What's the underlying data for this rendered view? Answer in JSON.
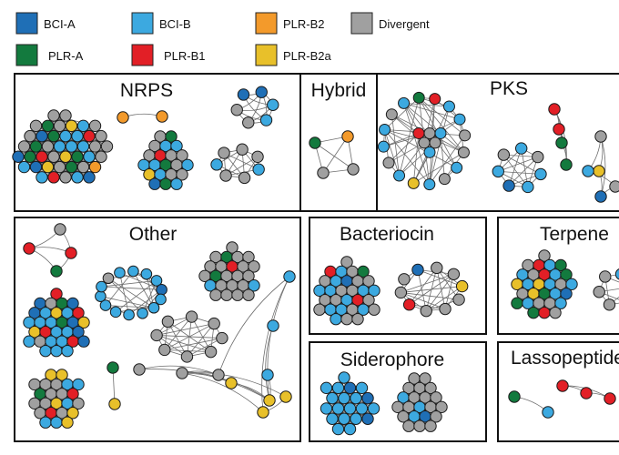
{
  "legend": [
    {
      "key": "bci_a",
      "label": "BCI-A",
      "color": "#1f6fb6"
    },
    {
      "key": "bci_b",
      "label": "BCI-B",
      "color": "#3ca9e0"
    },
    {
      "key": "plr_b2",
      "label": "PLR-B2",
      "color": "#f39a2b"
    },
    {
      "key": "divergent",
      "label": "Divergent",
      "color": "#a0a0a0"
    },
    {
      "key": "plr_a",
      "label": "PLR-A",
      "color": "#137a3e"
    },
    {
      "key": "plr_b1",
      "label": "PLR-B1",
      "color": "#e21f26"
    },
    {
      "key": "plr_b2a",
      "label": "PLR-B2a",
      "color": "#e8c02a"
    }
  ],
  "panels": [
    {
      "key": "nrps",
      "title": "NRPS"
    },
    {
      "key": "hybrid",
      "title": "Hybrid"
    },
    {
      "key": "pks",
      "title": "PKS"
    },
    {
      "key": "other",
      "title": "Other"
    },
    {
      "key": "bacteriocin",
      "title": "Bacteriocin"
    },
    {
      "key": "terpene",
      "title": "Terpene"
    },
    {
      "key": "siderophore",
      "title": "Siderophore"
    },
    {
      "key": "lassopeptide",
      "title": "Lassopeptide"
    }
  ]
}
